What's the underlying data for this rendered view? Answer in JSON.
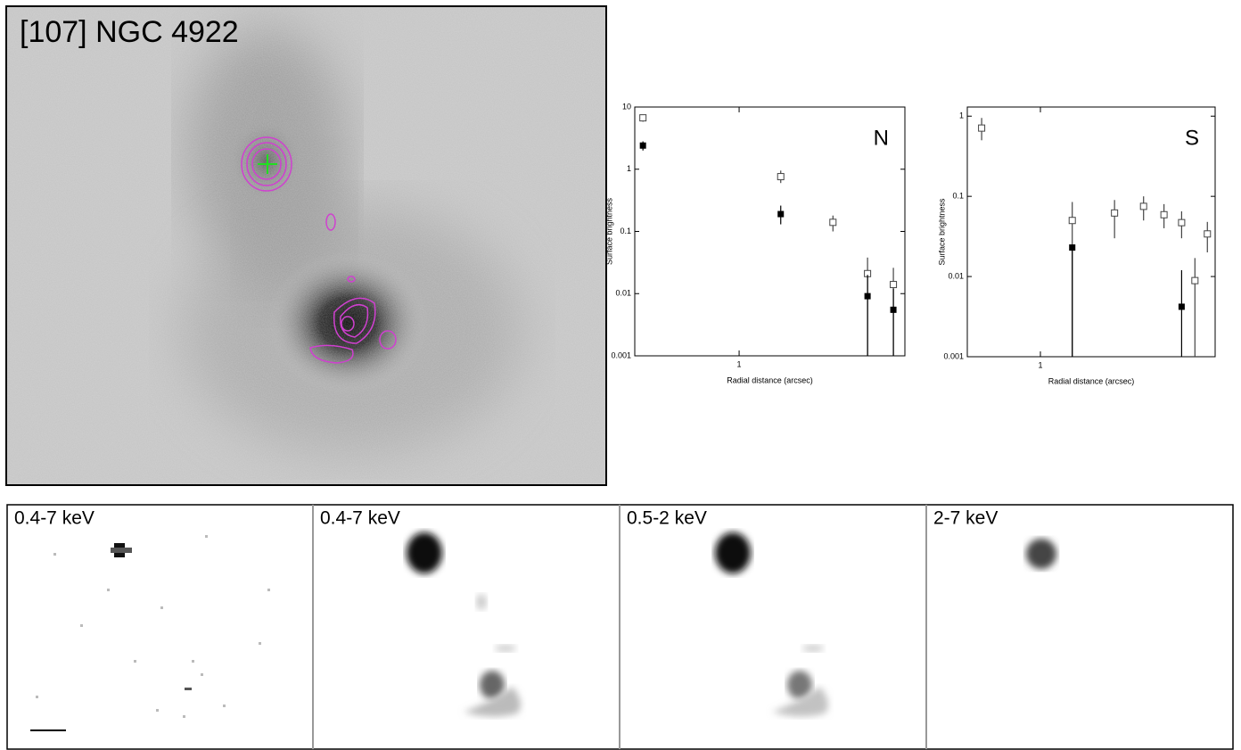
{
  "header": {
    "title": "[107] NGC 4922"
  },
  "panels": [
    {
      "label": "0.4-7 keV"
    },
    {
      "label": "0.4-7 keV"
    },
    {
      "label": "0.5-2 keV"
    },
    {
      "label": "2-7 keV"
    }
  ],
  "chart_data": [
    {
      "type": "scatter",
      "annotation": "N",
      "xlabel": "Radial distance (arcsec)",
      "ylabel": "Surface brightness",
      "xscale": "log",
      "yscale": "log",
      "xlim": [
        0.35,
        5.3
      ],
      "ylim": [
        0.001,
        10
      ],
      "xticks": [
        1
      ],
      "yticks": [
        0.001,
        0.01,
        0.1,
        1,
        10
      ],
      "series": [
        {
          "marker": "open",
          "color": "#444444",
          "x": [
            0.38,
            1.52,
            2.57,
            3.64,
            4.72
          ],
          "values": [
            6.7,
            0.76,
            0.14,
            0.021,
            0.014
          ],
          "lower": [
            5.8,
            0.6,
            0.1,
            0.001,
            0.001
          ],
          "upper": [
            7.5,
            0.95,
            0.18,
            0.038,
            0.026
          ]
        },
        {
          "marker": "filled",
          "color": "#000000",
          "x": [
            0.38,
            1.52,
            3.64,
            4.72
          ],
          "values": [
            2.4,
            0.19,
            0.0091,
            0.0055
          ],
          "lower": [
            2.0,
            0.13,
            0.001,
            0.001
          ],
          "upper": [
            2.8,
            0.26,
            0.02,
            0.012
          ]
        }
      ]
    },
    {
      "type": "scatter",
      "annotation": "S",
      "xlabel": "Radial distance (arcsec)",
      "ylabel": "Surface brightness",
      "xscale": "log",
      "yscale": "log",
      "xlim": [
        0.35,
        12.3
      ],
      "ylim": [
        0.001,
        1.3
      ],
      "xticks": [
        1
      ],
      "yticks": [
        0.001,
        0.01,
        0.1,
        1
      ],
      "series": [
        {
          "marker": "open",
          "color": "#444444",
          "x": [
            0.43,
            1.58,
            2.9,
            4.4,
            5.9,
            7.6,
            9.2,
            11.0
          ],
          "values": [
            0.71,
            0.05,
            0.062,
            0.075,
            0.059,
            0.047,
            0.0089,
            0.034
          ],
          "lower": [
            0.5,
            0.001,
            0.03,
            0.05,
            0.04,
            0.03,
            0.001,
            0.02
          ],
          "upper": [
            0.95,
            0.085,
            0.09,
            0.1,
            0.08,
            0.065,
            0.017,
            0.048
          ]
        },
        {
          "marker": "filled",
          "color": "#000000",
          "x": [
            1.58,
            7.6
          ],
          "values": [
            0.023,
            0.0042
          ],
          "lower": [
            0.001,
            0.001
          ],
          "upper": [
            0.023,
            0.012
          ]
        }
      ]
    }
  ]
}
